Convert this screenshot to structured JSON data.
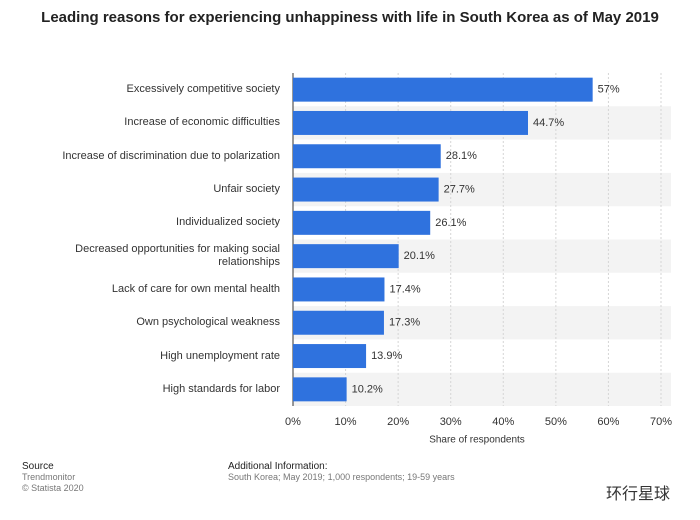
{
  "chart_data": {
    "type": "bar",
    "orientation": "horizontal",
    "title": "Leading reasons for experiencing unhappiness with life in South Korea as of May 2019",
    "x_label": "Share of respondents",
    "categories": [
      "Excessively competitive society",
      "Increase of economic difficulties",
      "Increase of discrimination due to polarization",
      "Unfair society",
      "Individualized society",
      "Decreased opportunities for making social relationships",
      "Lack of care for own mental health",
      "Own psychological weakness",
      "High unemployment rate",
      "High standards for labor"
    ],
    "values": [
      57,
      44.7,
      28.1,
      27.7,
      26.1,
      20.1,
      17.4,
      17.3,
      13.9,
      10.2
    ],
    "value_labels": [
      "57%",
      "44.7%",
      "28.1%",
      "27.7%",
      "26.1%",
      "20.1%",
      "17.4%",
      "17.3%",
      "13.9%",
      "10.2%"
    ],
    "color": "#2f72de",
    "xlim": [
      0,
      70
    ],
    "xticks": [
      {
        "value": 0,
        "label": "0%"
      },
      {
        "value": 10,
        "label": "10%"
      },
      {
        "value": 20,
        "label": "20%"
      },
      {
        "value": 30,
        "label": "30%"
      },
      {
        "value": 40,
        "label": "40%"
      },
      {
        "value": 50,
        "label": "50%"
      },
      {
        "value": 60,
        "label": "60%"
      },
      {
        "value": 70,
        "label": "70%"
      }
    ],
    "grid": true
  },
  "footer": {
    "source_title": "Source",
    "source": "Trendmonitor",
    "copyright": "© Statista 2020",
    "info_title": "Additional Information:",
    "info": "South Korea; May 2019; 1,000 respondents; 19-59 years",
    "watermark": "环行星球"
  }
}
